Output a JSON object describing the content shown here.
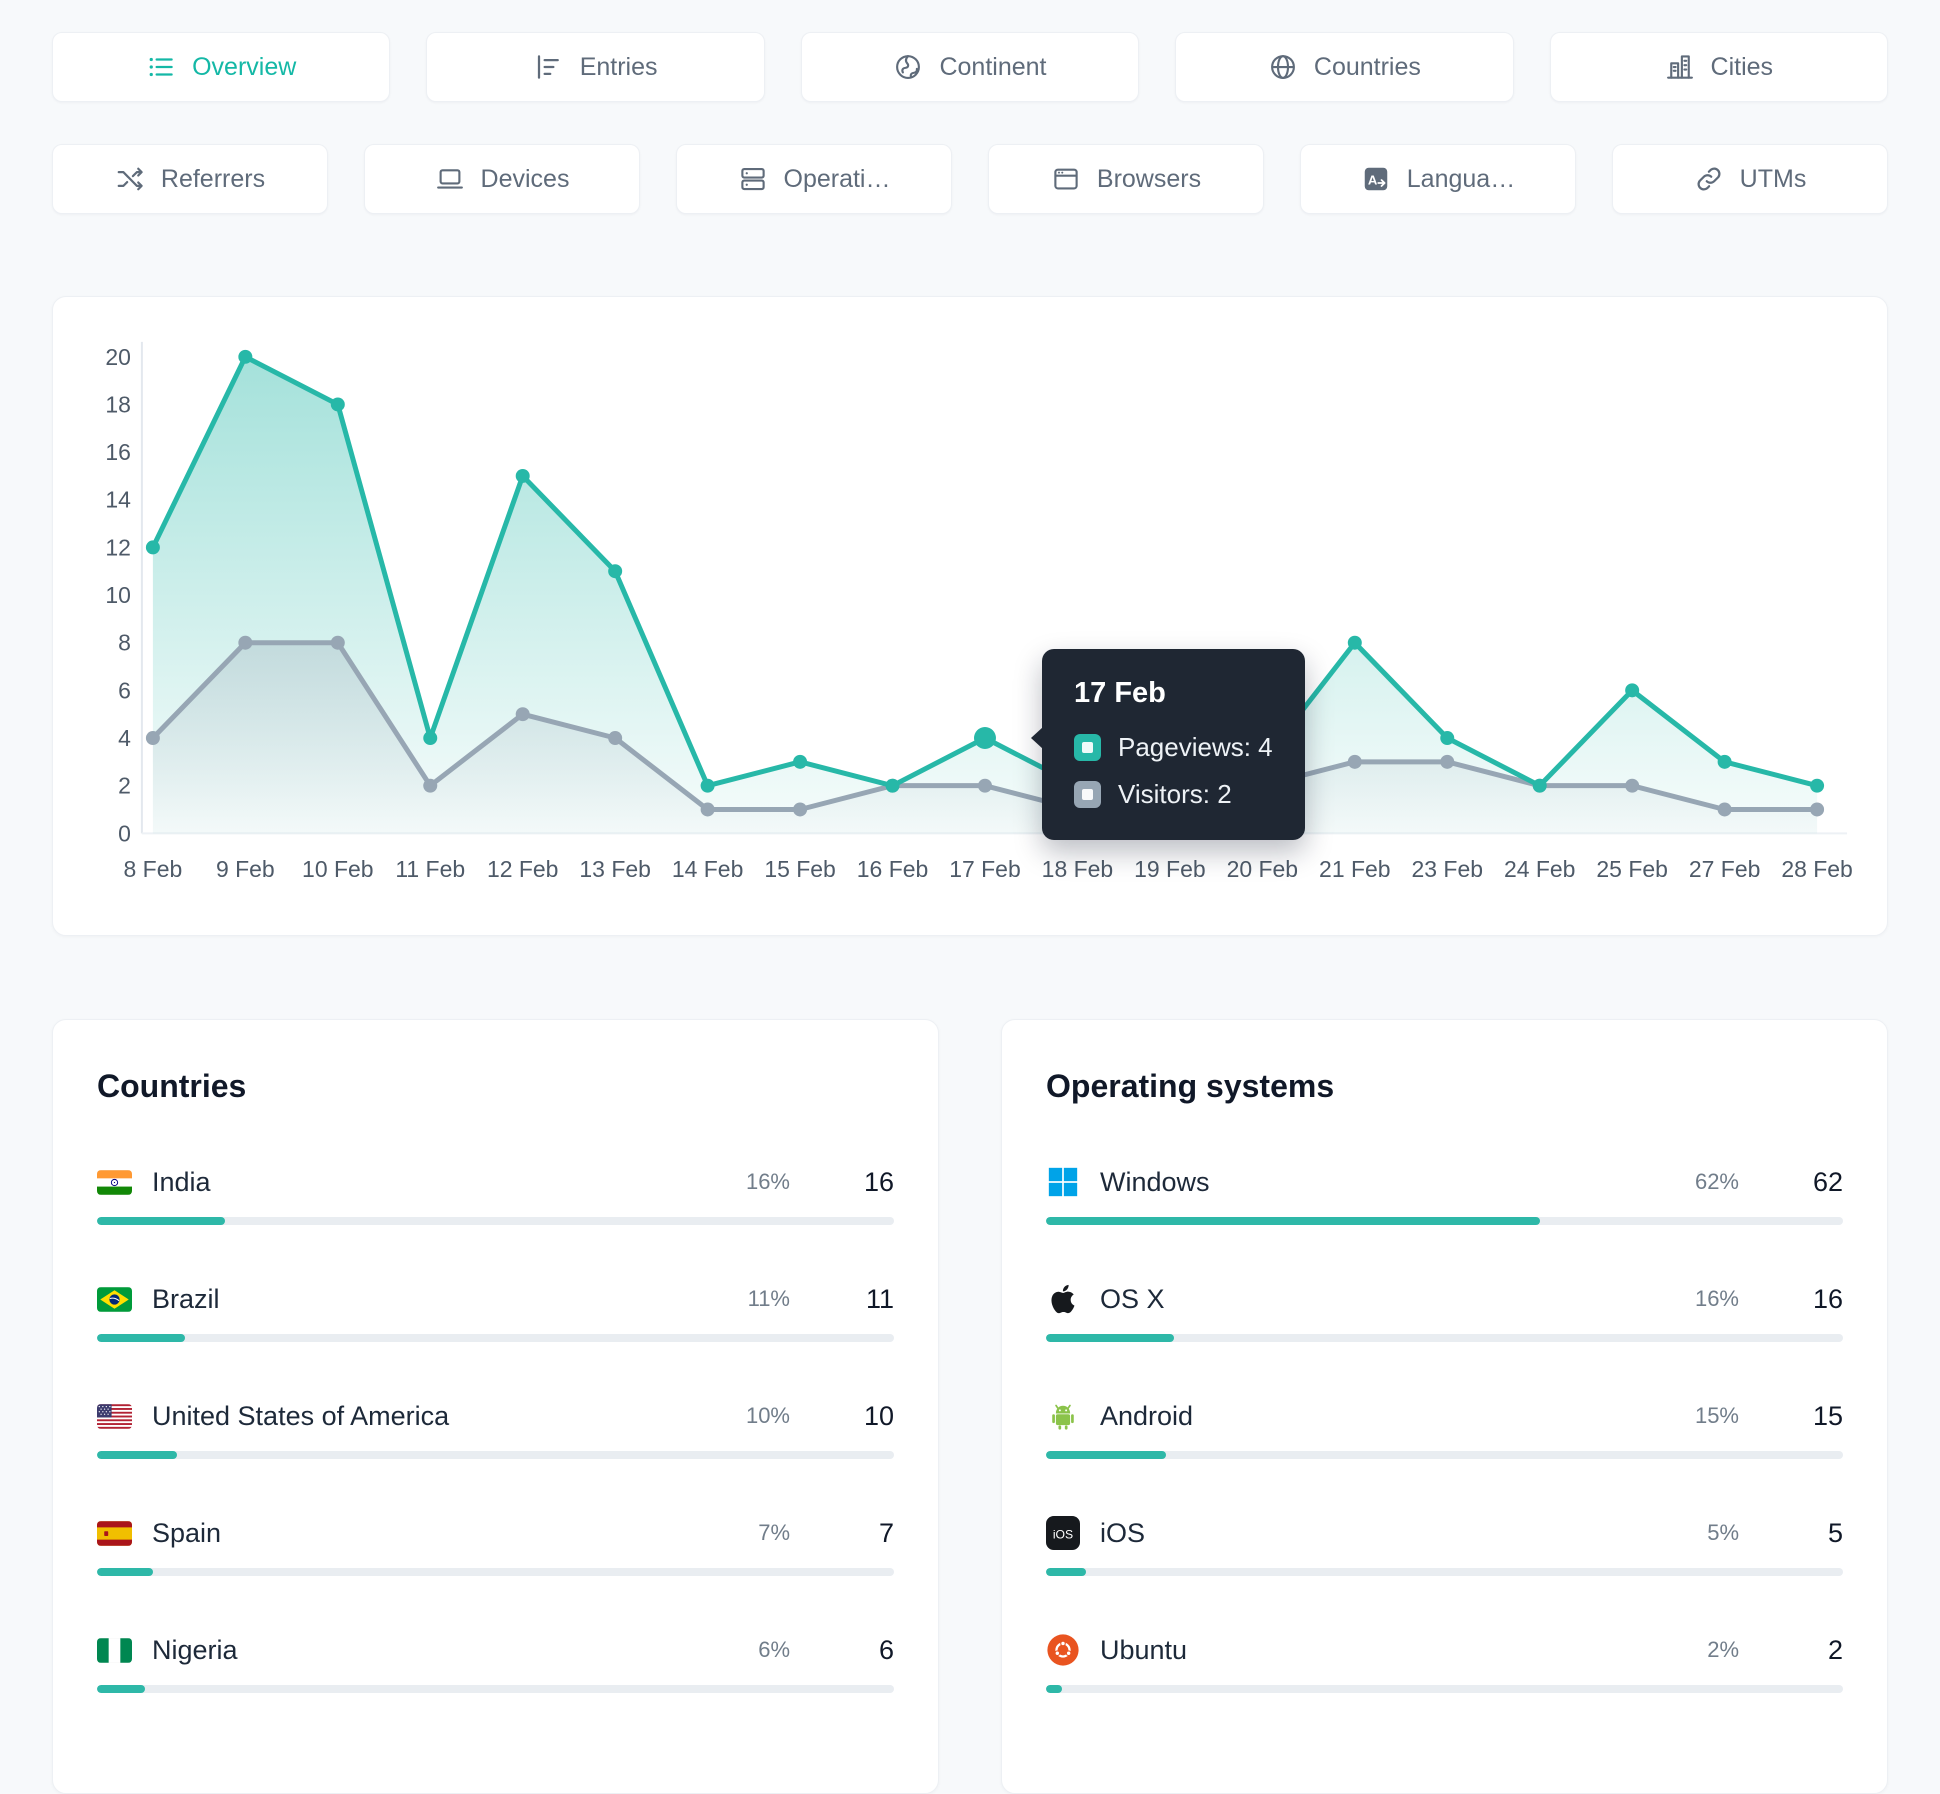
{
  "tabs": {
    "row1": [
      {
        "label": "Overview",
        "icon": "list-icon",
        "active": true
      },
      {
        "label": "Entries",
        "icon": "bar-chart-icon",
        "active": false
      },
      {
        "label": "Continent",
        "icon": "earth-icon",
        "active": false
      },
      {
        "label": "Countries",
        "icon": "globe-icon",
        "active": false
      },
      {
        "label": "Cities",
        "icon": "city-icon",
        "active": false
      }
    ],
    "row2": [
      {
        "label": "Referrers",
        "icon": "shuffle-icon",
        "active": false
      },
      {
        "label": "Devices",
        "icon": "laptop-icon",
        "active": false
      },
      {
        "label": "Operati…",
        "icon": "server-icon",
        "active": false
      },
      {
        "label": "Browsers",
        "icon": "browser-icon",
        "active": false
      },
      {
        "label": "Langua…",
        "icon": "translate-icon",
        "active": false
      },
      {
        "label": "UTMs",
        "icon": "link-icon",
        "active": false
      }
    ]
  },
  "chart_data": {
    "type": "line",
    "categories": [
      "8 Feb",
      "9 Feb",
      "10 Feb",
      "11 Feb",
      "12 Feb",
      "13 Feb",
      "14 Feb",
      "15 Feb",
      "16 Feb",
      "17 Feb",
      "18 Feb",
      "19 Feb",
      "20 Feb",
      "21 Feb",
      "23 Feb",
      "24 Feb",
      "25 Feb",
      "27 Feb",
      "28 Feb"
    ],
    "series": [
      {
        "name": "Pageviews",
        "color": "#27b8a8",
        "values": [
          12,
          20,
          18,
          4,
          15,
          11,
          2,
          3,
          2,
          4,
          2,
          2,
          3,
          8,
          4,
          2,
          6,
          3,
          2
        ]
      },
      {
        "name": "Visitors",
        "color": "#97a6b4",
        "values": [
          4,
          8,
          8,
          2,
          5,
          4,
          1,
          1,
          2,
          2,
          1,
          1,
          2,
          3,
          3,
          2,
          2,
          1,
          1
        ]
      }
    ],
    "ylim": [
      0,
      20
    ],
    "y_ticks": [
      0,
      2,
      4,
      6,
      8,
      10,
      12,
      14,
      16,
      18,
      20
    ],
    "grid": false,
    "legend_position": "none",
    "highlight_index": 9
  },
  "tooltip": {
    "date": "17 Feb",
    "rows": [
      {
        "label": "Pageviews: 4",
        "color": "#27b8a8"
      },
      {
        "label": "Visitors: 2",
        "color": "#97a6b4"
      }
    ]
  },
  "countries": {
    "title": "Countries",
    "items": [
      {
        "name": "India",
        "icon": "india-flag",
        "percent": "16%",
        "value": "16",
        "bar": 16
      },
      {
        "name": "Brazil",
        "icon": "brazil-flag",
        "percent": "11%",
        "value": "11",
        "bar": 11
      },
      {
        "name": "United States of America",
        "icon": "usa-flag",
        "percent": "10%",
        "value": "10",
        "bar": 10
      },
      {
        "name": "Spain",
        "icon": "spain-flag",
        "percent": "7%",
        "value": "7",
        "bar": 7
      },
      {
        "name": "Nigeria",
        "icon": "nigeria-flag",
        "percent": "6%",
        "value": "6",
        "bar": 6
      }
    ]
  },
  "operating_systems": {
    "title": "Operating systems",
    "items": [
      {
        "name": "Windows",
        "icon": "windows-logo",
        "percent": "62%",
        "value": "62",
        "bar": 62
      },
      {
        "name": "OS X",
        "icon": "apple-logo",
        "percent": "16%",
        "value": "16",
        "bar": 16
      },
      {
        "name": "Android",
        "icon": "android-logo",
        "percent": "15%",
        "value": "15",
        "bar": 15
      },
      {
        "name": "iOS",
        "icon": "ios-logo",
        "percent": "5%",
        "value": "5",
        "bar": 5
      },
      {
        "name": "Ubuntu",
        "icon": "ubuntu-logo",
        "percent": "2%",
        "value": "2",
        "bar": 2
      }
    ]
  },
  "colors": {
    "accent": "#14b8a6",
    "pageviews_line": "#27b8a8",
    "visitors_line": "#97a6b4",
    "bar_fill": "#2eb8a8",
    "bar_track": "#e9edf1",
    "tooltip_bg": "#1f2733"
  }
}
